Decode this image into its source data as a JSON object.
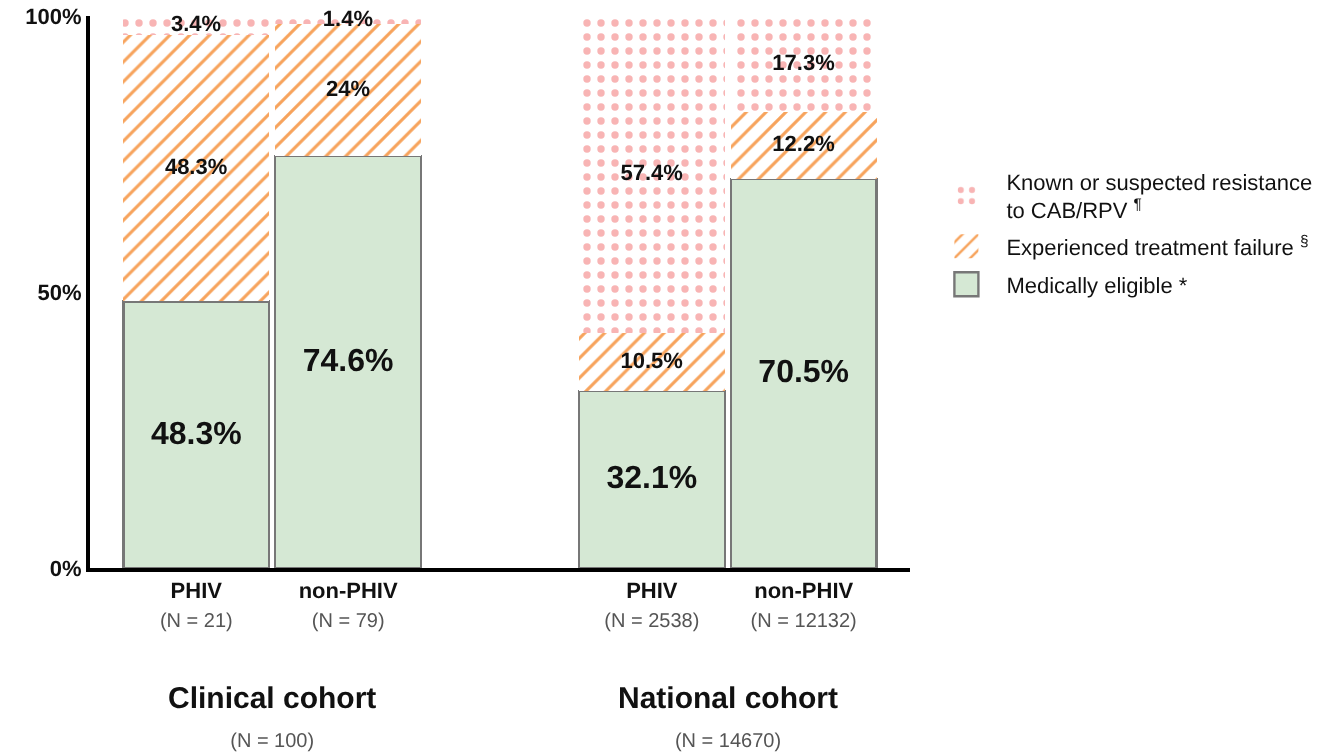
{
  "chart_data": {
    "type": "bar",
    "stacked": true,
    "categories": [
      "PHIV\n(N = 21)",
      "non-PHIV\n(N = 79)",
      null,
      "PHIV\n(N = 2538)",
      "non-PHIV\n(N = 12132)"
    ],
    "series": [
      {
        "name": "Medically eligible *",
        "color": "#d5e8d4",
        "values": [
          48.3,
          74.6,
          null,
          32.1,
          70.5
        ],
        "value_labels": [
          "48.3%",
          "74.6%",
          null,
          "32.1%",
          "70.5%"
        ]
      },
      {
        "name": "Experienced treatment failure $^{§}$",
        "color": "#f7a35c",
        "values": [
          48.3,
          24,
          null,
          10.5,
          12.2
        ],
        "value_labels": [
          "48.3%",
          "24%",
          null,
          "10.5%",
          "12.2%"
        ]
      },
      {
        "name": "Known or suspected resistance\nto CAB/RPV $^{¶}$",
        "color": "#f8b4b4",
        "values": [
          3.4,
          1.4,
          null,
          57.4,
          17.3
        ],
        "value_labels": [
          "3.4%",
          "1.4%",
          null,
          "57.4%",
          "17.3%"
        ]
      }
    ],
    "ylim": [
      0,
      100
    ],
    "yticks": [
      {
        "value": 0,
        "label": "0%"
      },
      {
        "value": 50,
        "label": "50%"
      },
      {
        "value": 100,
        "label": "100%"
      }
    ],
    "grid": false,
    "legend": "right",
    "annotations": [
      "Clinical cohort\n(N = 100)",
      "National cohort\n(N = 14670)"
    ]
  }
}
